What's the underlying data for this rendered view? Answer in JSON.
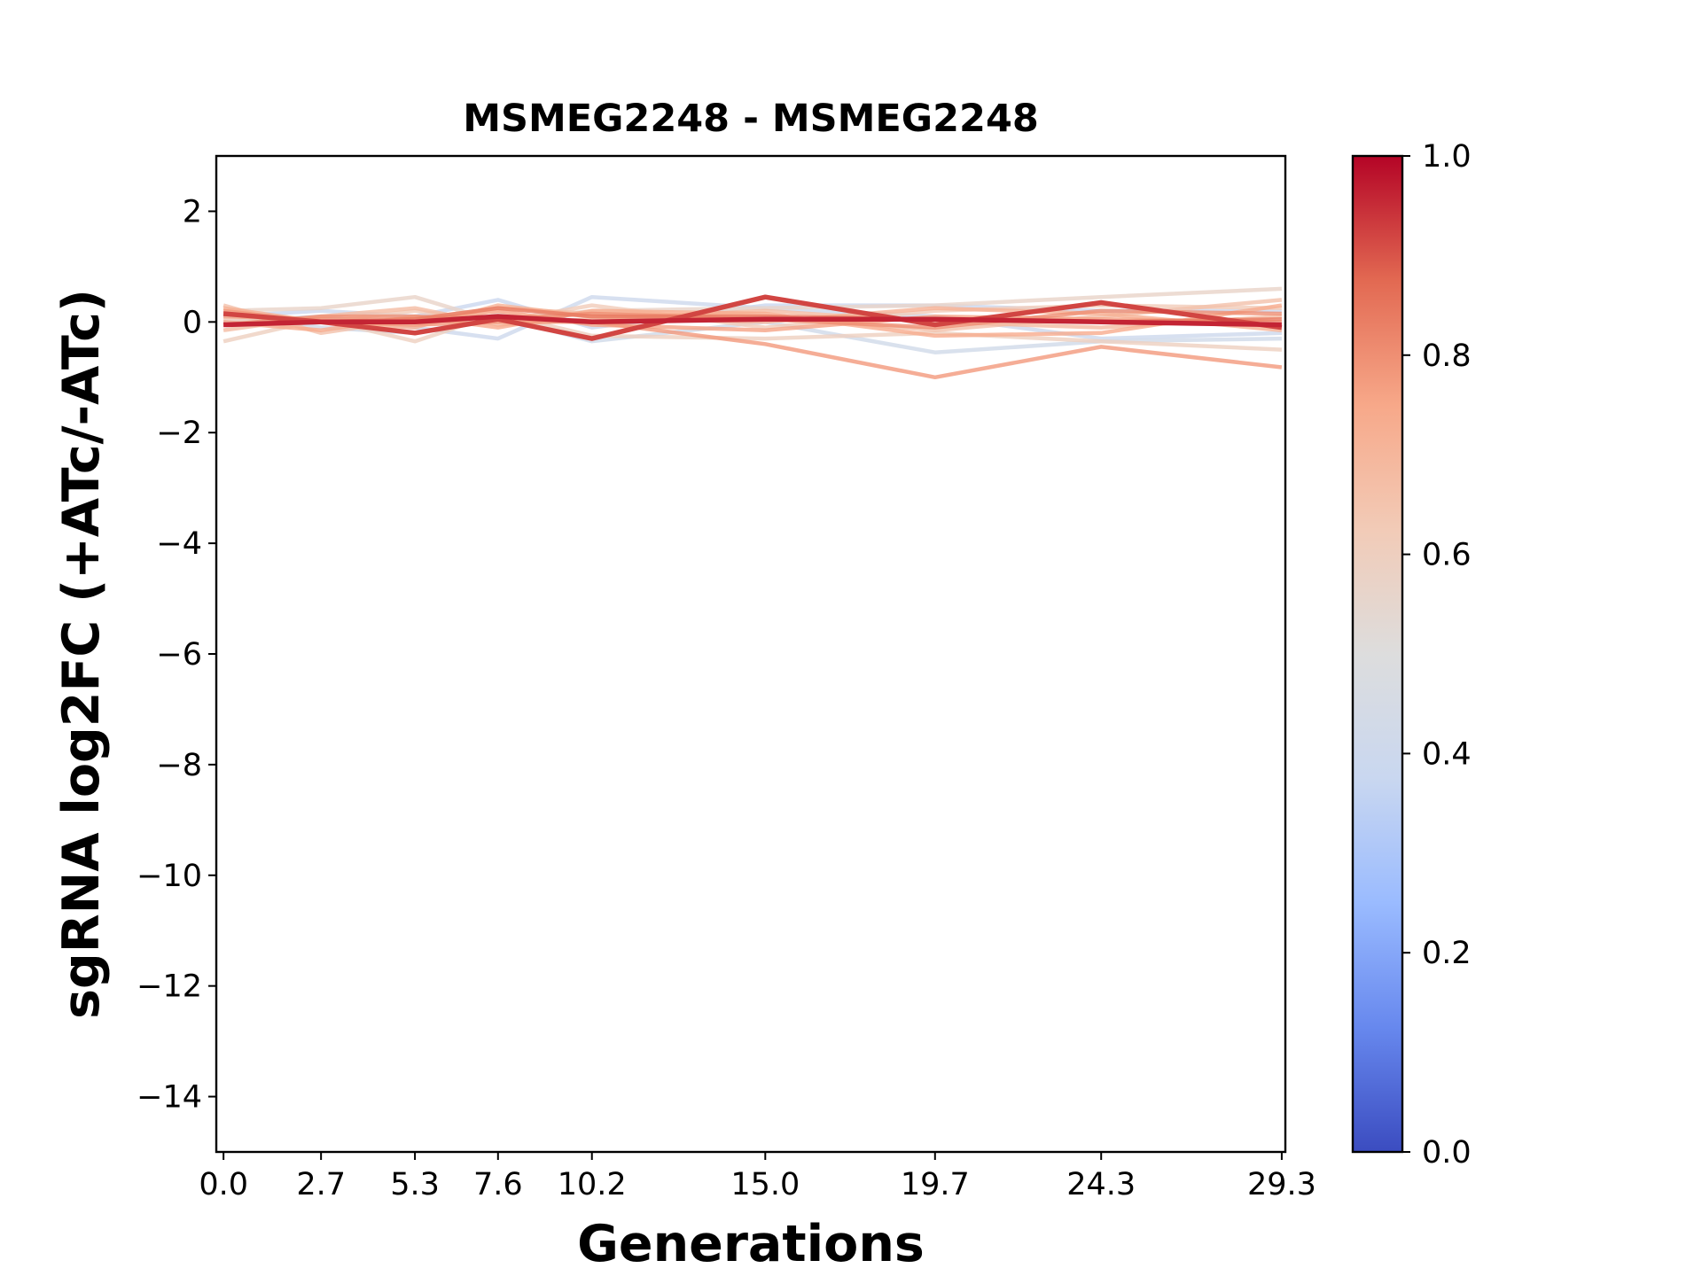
{
  "chart_data": {
    "type": "line",
    "title": "MSMEG2248 - MSMEG2248",
    "xlabel": "Generations",
    "ylabel": "sgRNA log2FC (+ATc/-ATc)",
    "x": [
      0.0,
      2.7,
      5.3,
      7.6,
      10.2,
      15.0,
      19.7,
      24.3,
      29.3
    ],
    "x_tick_labels": [
      "0.0",
      "2.7",
      "5.3",
      "7.6",
      "10.2",
      "15.0",
      "19.7",
      "24.3",
      "29.3"
    ],
    "xlim": [
      -0.2,
      29.4
    ],
    "ylim": [
      -15,
      3
    ],
    "y_ticks": [
      2,
      0,
      -2,
      -4,
      -6,
      -8,
      -10,
      -12,
      -14
    ],
    "y_tick_labels": [
      "2",
      "0",
      "−2",
      "−4",
      "−6",
      "−8",
      "−10",
      "−12",
      "−14"
    ],
    "grid": false,
    "colormap": "coolwarm",
    "colorbar": {
      "range": [
        0.0,
        1.0
      ],
      "ticks": [
        0.0,
        0.2,
        0.4,
        0.6,
        0.8,
        1.0
      ],
      "tick_labels": [
        "0.0",
        "0.2",
        "0.4",
        "0.6",
        "0.8",
        "1.0"
      ],
      "stops": [
        "#3b4cc0",
        "#6788ee",
        "#9abbff",
        "#c9d7f0",
        "#dddddd",
        "#f2cbb7",
        "#f7a889",
        "#e26952",
        "#b40426"
      ]
    },
    "series": [
      {
        "color_value": 0.38,
        "values": [
          0.1,
          0.2,
          0.1,
          0.4,
          -0.1,
          0.3,
          0.3,
          0.2,
          0.2
        ]
      },
      {
        "color_value": 0.4,
        "values": [
          0.0,
          0.1,
          -0.1,
          -0.3,
          0.45,
          0.25,
          0.1,
          -0.3,
          -0.2
        ]
      },
      {
        "color_value": 0.42,
        "values": [
          0.15,
          -0.1,
          -0.2,
          0.1,
          -0.35,
          0.0,
          -0.55,
          -0.35,
          -0.3
        ]
      },
      {
        "color_value": 0.57,
        "values": [
          0.2,
          0.25,
          0.45,
          0.0,
          0.2,
          0.25,
          0.3,
          0.45,
          0.6
        ]
      },
      {
        "color_value": 0.6,
        "values": [
          -0.35,
          0.05,
          -0.35,
          0.15,
          -0.25,
          -0.3,
          -0.2,
          -0.35,
          -0.5
        ]
      },
      {
        "color_value": 0.62,
        "values": [
          0.05,
          0.0,
          0.2,
          0.0,
          0.3,
          -0.1,
          0.2,
          0.3,
          0.25
        ]
      },
      {
        "color_value": 0.66,
        "values": [
          0.3,
          -0.2,
          0.05,
          0.25,
          0.15,
          0.1,
          -0.15,
          0.1,
          0.4
        ]
      },
      {
        "color_value": 0.68,
        "values": [
          -0.15,
          0.1,
          0.25,
          -0.05,
          0.05,
          0.2,
          0.0,
          -0.1,
          0.1
        ]
      },
      {
        "color_value": 0.72,
        "values": [
          0.25,
          0.0,
          -0.1,
          0.3,
          0.1,
          0.0,
          0.25,
          0.15,
          -0.15
        ]
      },
      {
        "color_value": 0.74,
        "values": [
          0.0,
          -0.15,
          0.1,
          -0.1,
          0.2,
          0.15,
          -0.25,
          -0.2,
          0.3
        ]
      },
      {
        "color_value": 0.76,
        "values": [
          0.1,
          0.05,
          0.0,
          0.2,
          -0.05,
          -0.15,
          0.1,
          0.05,
          0.0
        ]
      },
      {
        "color_value": 0.78,
        "values": [
          0.2,
          0.0,
          -0.05,
          0.0,
          0.0,
          -0.4,
          -1.0,
          -0.45,
          -0.82
        ]
      },
      {
        "color_value": 0.8,
        "values": [
          -0.05,
          0.1,
          0.1,
          0.05,
          0.15,
          0.05,
          -0.1,
          0.2,
          0.15
        ]
      },
      {
        "color_value": 0.84,
        "values": [
          0.15,
          0.0,
          0.05,
          0.25,
          0.1,
          0.1,
          0.05,
          0.0,
          0.05
        ]
      },
      {
        "color_value": 0.92,
        "values": [
          0.15,
          0.0,
          -0.2,
          0.05,
          -0.3,
          0.45,
          -0.05,
          0.35,
          -0.1
        ]
      },
      {
        "color_value": 0.96,
        "values": [
          -0.05,
          0.0,
          0.0,
          0.1,
          0.0,
          0.05,
          0.05,
          0.0,
          -0.05
        ]
      }
    ]
  }
}
